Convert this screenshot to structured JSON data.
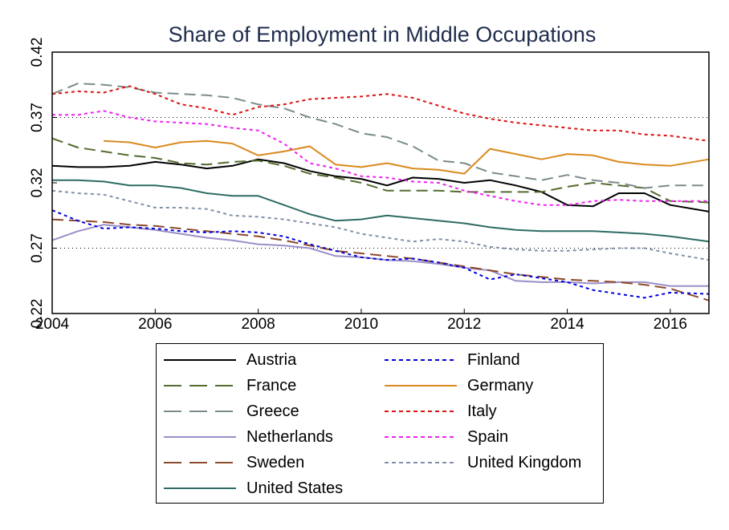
{
  "chart_data": {
    "type": "line",
    "title": "Share of Employment in Middle Occupations",
    "xlabel": "",
    "ylabel": "",
    "xlim": [
      2004,
      2016.75
    ],
    "ylim": [
      0.22,
      0.42
    ],
    "xticks": [
      2004,
      2006,
      2008,
      2010,
      2012,
      2014,
      2016
    ],
    "yticks": [
      "0.22",
      "0.27",
      "0.32",
      "0.37",
      "0.42"
    ],
    "gridlines_y": [
      0.27,
      0.37
    ],
    "grid_style": "dotted",
    "legend_position": "bottom",
    "series": [
      {
        "name": "Austria",
        "color": "#000000",
        "dash": "solid",
        "x": [
          2004,
          2004.5,
          2005,
          2005.5,
          2006,
          2006.5,
          2007,
          2007.5,
          2008,
          2008.5,
          2009,
          2009.5,
          2010,
          2010.5,
          2011,
          2011.5,
          2012,
          2012.5,
          2013,
          2013.5,
          2014,
          2014.5,
          2015,
          2015.5,
          2016,
          2016.75
        ],
        "y": [
          0.333,
          0.332,
          0.332,
          0.333,
          0.336,
          0.334,
          0.331,
          0.333,
          0.338,
          0.335,
          0.329,
          0.325,
          0.323,
          0.318,
          0.324,
          0.323,
          0.32,
          0.322,
          0.318,
          0.313,
          0.303,
          0.302,
          0.312,
          0.312,
          0.303,
          0.298
        ]
      },
      {
        "name": "France",
        "color": "#556b2f",
        "dash": "14,7",
        "x": [
          2004,
          2004.5,
          2005,
          2005.5,
          2006,
          2006.5,
          2007,
          2007.5,
          2008,
          2008.5,
          2009,
          2009.5,
          2010,
          2010.5,
          2011,
          2011.5,
          2012,
          2012.5,
          2013,
          2013.5,
          2014,
          2014.5,
          2015,
          2015.5,
          2016,
          2016.75
        ],
        "y": [
          0.354,
          0.347,
          0.344,
          0.341,
          0.339,
          0.335,
          0.334,
          0.336,
          0.337,
          0.333,
          0.327,
          0.324,
          0.32,
          0.314,
          0.314,
          0.314,
          0.313,
          0.313,
          0.313,
          0.313,
          0.317,
          0.32,
          0.318,
          0.316,
          0.306,
          0.305
        ]
      },
      {
        "name": "Greece",
        "color": "#7b8b8b",
        "dash": "14,7",
        "x": [
          2004,
          2004.5,
          2005,
          2005.5,
          2006,
          2006.5,
          2007,
          2007.5,
          2008,
          2008.5,
          2009,
          2009.5,
          2010,
          2010.5,
          2011,
          2011.5,
          2012,
          2012.5,
          2013,
          2013.5,
          2014,
          2014.5,
          2015,
          2015.5,
          2016,
          2016.75
        ],
        "y": [
          0.388,
          0.396,
          0.395,
          0.393,
          0.389,
          0.388,
          0.387,
          0.385,
          0.38,
          0.377,
          0.37,
          0.365,
          0.358,
          0.355,
          0.348,
          0.337,
          0.335,
          0.328,
          0.325,
          0.322,
          0.326,
          0.322,
          0.32,
          0.316,
          0.318,
          0.318
        ]
      },
      {
        "name": "Netherlands",
        "color": "#9b8ec8",
        "dash": "solid",
        "x": [
          2004,
          2004.5,
          2005,
          2005.5,
          2006,
          2006.5,
          2007,
          2007.5,
          2008,
          2008.5,
          2009,
          2009.5,
          2010,
          2010.5,
          2011,
          2011.5,
          2012,
          2012.5,
          2013,
          2013.5,
          2014,
          2014.5,
          2015,
          2015.5,
          2016,
          2016.75
        ],
        "y": [
          0.276,
          0.283,
          0.288,
          0.286,
          0.284,
          0.281,
          0.278,
          0.276,
          0.273,
          0.272,
          0.27,
          0.264,
          0.263,
          0.261,
          0.26,
          0.258,
          0.255,
          0.253,
          0.245,
          0.244,
          0.244,
          0.243,
          0.244,
          0.244,
          0.241,
          0.241
        ]
      },
      {
        "name": "Sweden",
        "color": "#8b4a2b",
        "dash": "14,7",
        "x": [
          2004,
          2004.5,
          2005,
          2005.5,
          2006,
          2006.5,
          2007,
          2007.5,
          2008,
          2008.5,
          2009,
          2009.5,
          2010,
          2010.5,
          2011,
          2011.5,
          2012,
          2012.5,
          2013,
          2013.5,
          2014,
          2014.5,
          2015,
          2015.5,
          2016,
          2016.75
        ],
        "y": [
          0.292,
          0.291,
          0.29,
          0.288,
          0.287,
          0.285,
          0.283,
          0.281,
          0.279,
          0.276,
          0.272,
          0.268,
          0.266,
          0.264,
          0.262,
          0.259,
          0.256,
          0.253,
          0.25,
          0.248,
          0.246,
          0.245,
          0.244,
          0.242,
          0.239,
          0.23
        ]
      },
      {
        "name": "United States",
        "color": "#2e6b64",
        "dash": "solid",
        "x": [
          2004,
          2004.5,
          2005,
          2005.5,
          2006,
          2006.5,
          2007,
          2007.5,
          2008,
          2008.5,
          2009,
          2009.5,
          2010,
          2010.5,
          2011,
          2011.5,
          2012,
          2012.5,
          2013,
          2013.5,
          2014,
          2014.5,
          2015,
          2015.5,
          2016,
          2016.75
        ],
        "y": [
          0.322,
          0.322,
          0.321,
          0.318,
          0.318,
          0.316,
          0.312,
          0.31,
          0.31,
          0.303,
          0.296,
          0.291,
          0.292,
          0.295,
          0.293,
          0.291,
          0.289,
          0.286,
          0.284,
          0.283,
          0.283,
          0.283,
          0.282,
          0.281,
          0.279,
          0.275
        ]
      },
      {
        "name": "Finland",
        "color": "#0000dd",
        "dash": "4,4",
        "x": [
          2004,
          2004.5,
          2005,
          2005.5,
          2006,
          2006.5,
          2007,
          2007.5,
          2008,
          2008.5,
          2009,
          2009.5,
          2010,
          2010.5,
          2011,
          2011.5,
          2012,
          2012.5,
          2013,
          2013.5,
          2014,
          2014.5,
          2015,
          2015.5,
          2016,
          2016.75
        ],
        "y": [
          0.299,
          0.291,
          0.285,
          0.286,
          0.285,
          0.283,
          0.282,
          0.283,
          0.282,
          0.279,
          0.273,
          0.268,
          0.263,
          0.261,
          0.262,
          0.259,
          0.255,
          0.246,
          0.25,
          0.247,
          0.244,
          0.238,
          0.235,
          0.232,
          0.236,
          0.235
        ]
      },
      {
        "name": "Germany",
        "color": "#d98a1e",
        "dash": "solid",
        "x": [
          2005,
          2005.5,
          2006,
          2006.5,
          2007,
          2007.5,
          2008,
          2008.5,
          2009,
          2009.5,
          2010,
          2010.5,
          2011,
          2011.5,
          2012,
          2012.5,
          2013,
          2013.5,
          2014,
          2014.5,
          2015,
          2015.5,
          2016,
          2016.75
        ],
        "y": [
          0.352,
          0.351,
          0.347,
          0.351,
          0.352,
          0.35,
          0.341,
          0.344,
          0.348,
          0.334,
          0.332,
          0.335,
          0.331,
          0.33,
          0.327,
          0.346,
          0.342,
          0.338,
          0.342,
          0.341,
          0.336,
          0.334,
          0.333,
          0.338
        ]
      },
      {
        "name": "Italy",
        "color": "#dd1111",
        "dash": "4,4",
        "x": [
          2004,
          2004.5,
          2005,
          2005.5,
          2006,
          2006.5,
          2007,
          2007.5,
          2008,
          2008.5,
          2009,
          2009.5,
          2010,
          2010.5,
          2011,
          2011.5,
          2012,
          2012.5,
          2013,
          2013.5,
          2014,
          2014.5,
          2015,
          2015.5,
          2016,
          2016.75
        ],
        "y": [
          0.388,
          0.39,
          0.389,
          0.394,
          0.388,
          0.38,
          0.377,
          0.372,
          0.378,
          0.38,
          0.384,
          0.385,
          0.386,
          0.388,
          0.385,
          0.379,
          0.373,
          0.369,
          0.366,
          0.364,
          0.362,
          0.36,
          0.36,
          0.357,
          0.356,
          0.352
        ]
      },
      {
        "name": "Spain",
        "color": "#ee22ee",
        "dash": "4,4",
        "x": [
          2004,
          2004.5,
          2005,
          2005.5,
          2006,
          2006.5,
          2007,
          2007.5,
          2008,
          2008.5,
          2009,
          2009.5,
          2010,
          2010.5,
          2011,
          2011.5,
          2012,
          2012.5,
          2013,
          2013.5,
          2014,
          2014.5,
          2015,
          2015.5,
          2016,
          2016.75
        ],
        "y": [
          0.372,
          0.372,
          0.375,
          0.37,
          0.367,
          0.366,
          0.365,
          0.362,
          0.36,
          0.35,
          0.335,
          0.331,
          0.325,
          0.324,
          0.321,
          0.32,
          0.314,
          0.31,
          0.306,
          0.303,
          0.303,
          0.306,
          0.307,
          0.306,
          0.306,
          0.306
        ]
      },
      {
        "name": "United Kingdom",
        "color": "#8090a8",
        "dash": "4,4",
        "x": [
          2004,
          2004.5,
          2005,
          2005.5,
          2006,
          2006.5,
          2007,
          2007.5,
          2008,
          2008.5,
          2009,
          2009.5,
          2010,
          2010.5,
          2011,
          2011.5,
          2012,
          2012.5,
          2013,
          2013.5,
          2014,
          2014.5,
          2015,
          2015.5,
          2016,
          2016.75
        ],
        "y": [
          0.314,
          0.312,
          0.311,
          0.306,
          0.301,
          0.301,
          0.3,
          0.295,
          0.294,
          0.292,
          0.289,
          0.286,
          0.281,
          0.278,
          0.275,
          0.277,
          0.275,
          0.271,
          0.269,
          0.268,
          0.268,
          0.269,
          0.27,
          0.27,
          0.266,
          0.261
        ]
      }
    ]
  }
}
